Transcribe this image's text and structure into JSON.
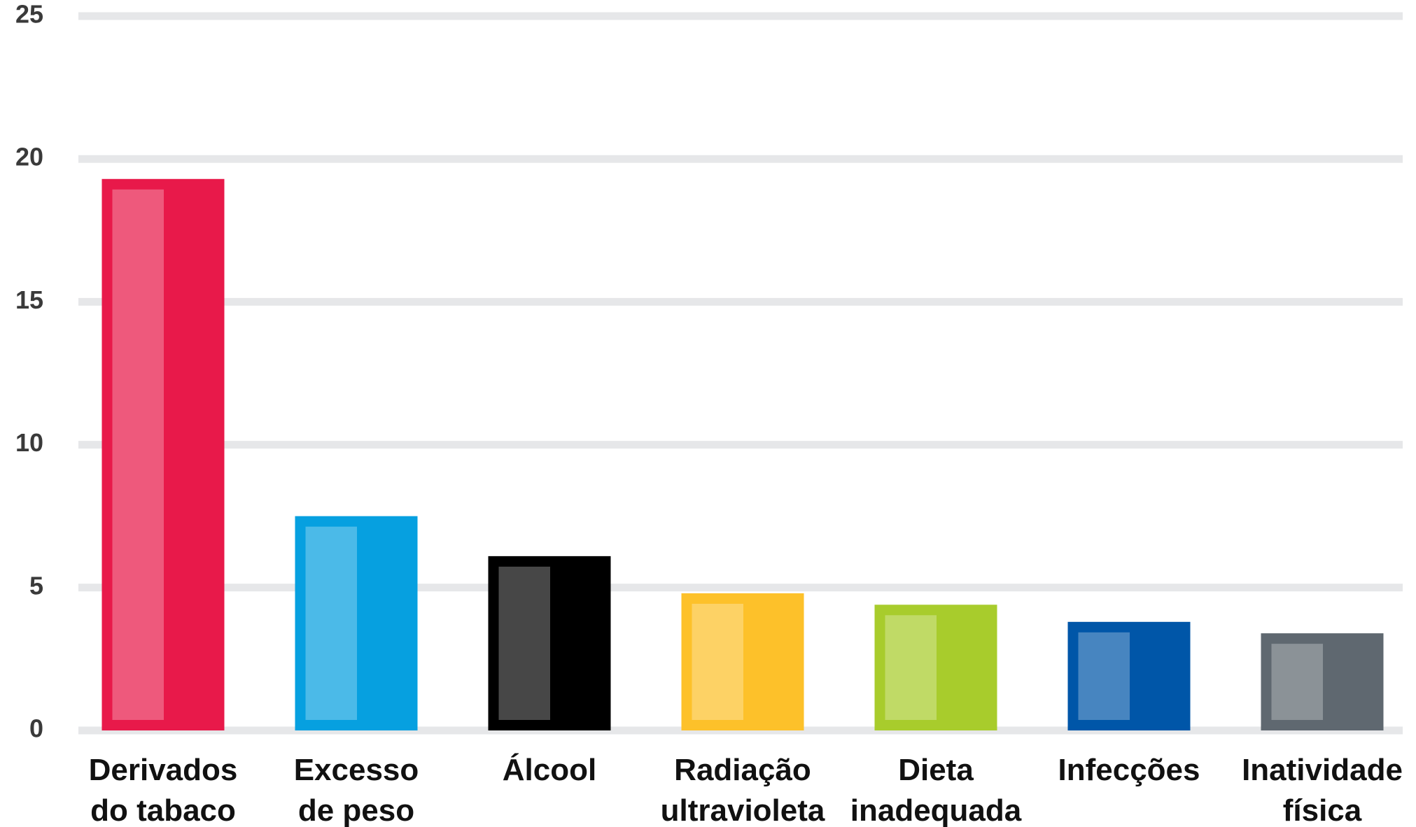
{
  "chart_data": {
    "type": "bar",
    "categories": [
      "Derivados\ndo tabaco",
      "Excesso\nde peso",
      "Álcool",
      "Radiação\nultravioleta",
      "Dieta\ninadequada",
      "Infecções",
      "Inatividade\nfísica"
    ],
    "values": [
      19.3,
      7.5,
      6.1,
      4.8,
      4.4,
      3.8,
      3.4
    ],
    "colors": [
      "#e8194a",
      "#06a0e0",
      "#000000",
      "#fdc12a",
      "#a8cc2c",
      "#0056a8",
      "#5f6870"
    ],
    "ylim": [
      0,
      25
    ],
    "yticks": [
      0,
      5,
      10,
      15,
      20,
      25
    ],
    "grid": true
  }
}
